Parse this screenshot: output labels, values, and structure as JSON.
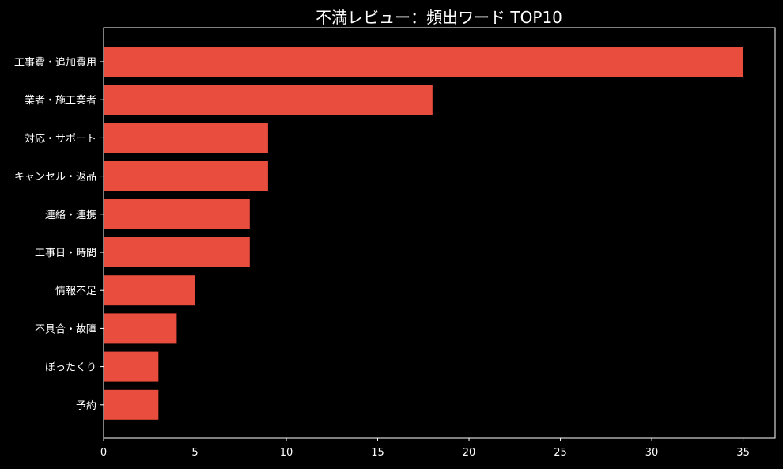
{
  "chart_data": {
    "type": "bar",
    "orientation": "horizontal",
    "title": "不満レビュー：頻出ワード TOP10",
    "xlabel": "",
    "ylabel": "",
    "categories": [
      "工事費・追加費用",
      "業者・施工業者",
      "対応・サポート",
      "キャンセル・返品",
      "連絡・連携",
      "工事日・時間",
      "情報不足",
      "不具合・故障",
      "ぼったくり",
      "予約"
    ],
    "values": [
      35,
      18,
      9,
      9,
      8,
      8,
      5,
      4,
      3,
      3
    ],
    "xlim": [
      0,
      36.75
    ],
    "xticks": [
      0,
      5,
      10,
      15,
      20,
      25,
      30,
      35
    ],
    "grid": false,
    "legend": "none",
    "colors": {
      "bar": "#e84d3d",
      "background": "#000000",
      "text": "#ffffff",
      "axis": "#ffffff"
    }
  }
}
